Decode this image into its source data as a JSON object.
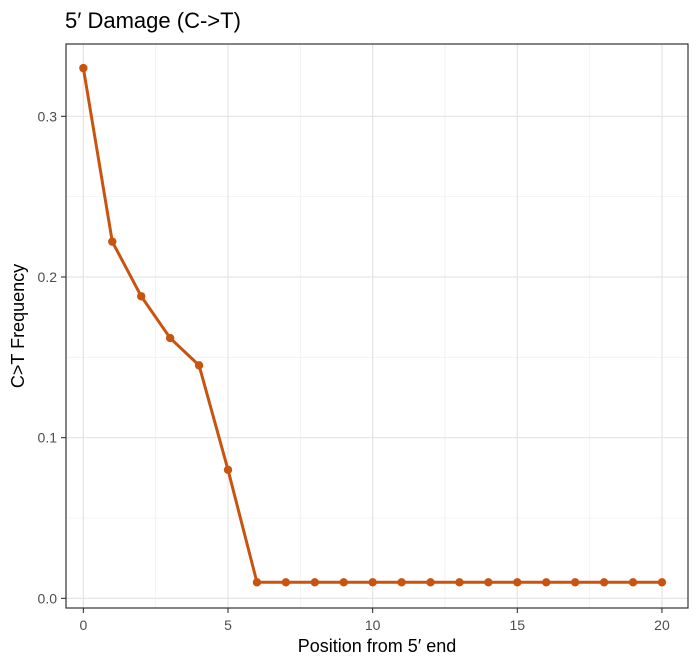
{
  "chart_data": {
    "type": "line",
    "title": "5′ Damage (C->T)",
    "xlabel": "Position from 5′ end",
    "ylabel": "C>T Frequency",
    "xlim": [
      -0.6,
      20.9
    ],
    "ylim": [
      -0.006,
      0.345
    ],
    "x_ticks": [
      0,
      5,
      10,
      15,
      20
    ],
    "y_ticks": [
      0.0,
      0.1,
      0.2,
      0.3
    ],
    "x_tick_labels": [
      "0",
      "5",
      "10",
      "15",
      "20"
    ],
    "y_tick_labels": [
      "0.0",
      "0.1",
      "0.2",
      "0.3"
    ],
    "x_minor_ticks": [
      2.5,
      7.5,
      12.5,
      17.5
    ],
    "y_minor_ticks": [
      0.05,
      0.15,
      0.25
    ],
    "grid": true,
    "line_color": "#c9540f",
    "x": [
      0,
      1,
      2,
      3,
      4,
      5,
      6,
      7,
      8,
      9,
      10,
      11,
      12,
      13,
      14,
      15,
      16,
      17,
      18,
      19,
      20
    ],
    "y": [
      0.33,
      0.222,
      0.188,
      0.162,
      0.145,
      0.08,
      0.01,
      0.01,
      0.01,
      0.01,
      0.01,
      0.01,
      0.01,
      0.01,
      0.01,
      0.01,
      0.01,
      0.01,
      0.01,
      0.01,
      0.01
    ]
  }
}
